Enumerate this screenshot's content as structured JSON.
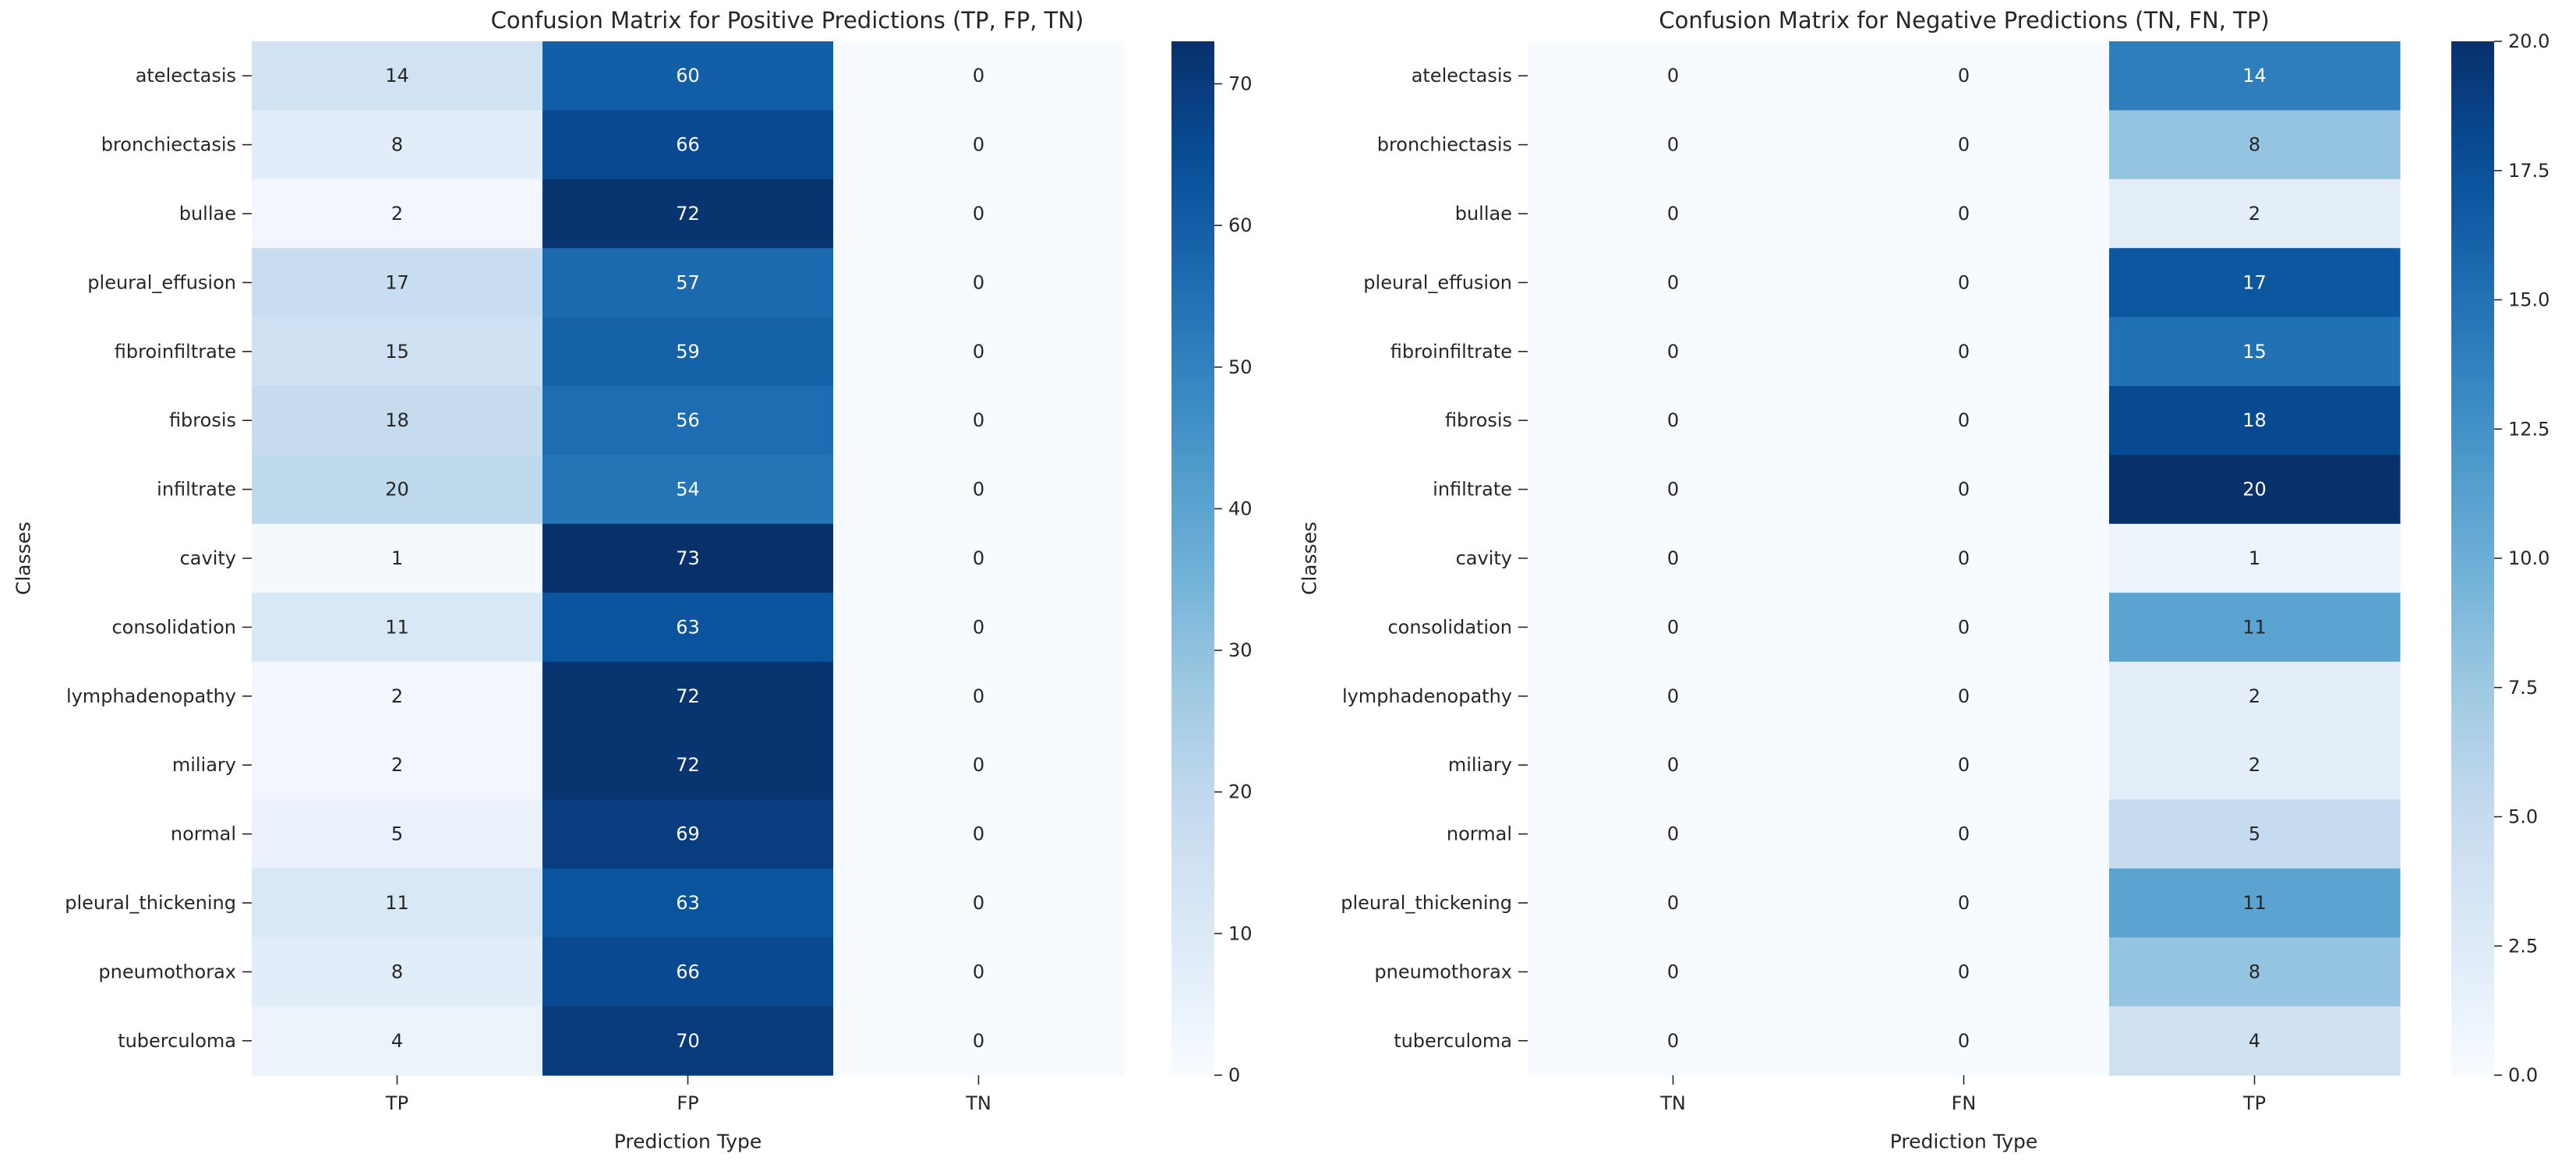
{
  "chart_data": [
    {
      "type": "heatmap",
      "title": "Confusion Matrix for Positive Predictions (TP, FP, TN)",
      "xlabel": "Prediction Type",
      "ylabel": "Classes",
      "x": [
        "TP",
        "FP",
        "TN"
      ],
      "y": [
        "atelectasis",
        "bronchiectasis",
        "bullae",
        "pleural_effusion",
        "fibroinfiltrate",
        "fibrosis",
        "infiltrate",
        "cavity",
        "consolidation",
        "lymphadenopathy",
        "miliary",
        "normal",
        "pleural_thickening",
        "pneumothorax",
        "tuberculoma"
      ],
      "values": [
        [
          14,
          60,
          0
        ],
        [
          8,
          66,
          0
        ],
        [
          2,
          72,
          0
        ],
        [
          17,
          57,
          0
        ],
        [
          15,
          59,
          0
        ],
        [
          18,
          56,
          0
        ],
        [
          20,
          54,
          0
        ],
        [
          1,
          73,
          0
        ],
        [
          11,
          63,
          0
        ],
        [
          2,
          72,
          0
        ],
        [
          2,
          72,
          0
        ],
        [
          5,
          69,
          0
        ],
        [
          11,
          63,
          0
        ],
        [
          8,
          66,
          0
        ],
        [
          4,
          70,
          0
        ]
      ],
      "colormap": "Blues",
      "vmin": 0,
      "vmax": 73,
      "colorbar_ticks": [
        0,
        10,
        20,
        30,
        40,
        50,
        60,
        70
      ],
      "colorbar_tick_labels": [
        "0",
        "10",
        "20",
        "30",
        "40",
        "50",
        "60",
        "70"
      ]
    },
    {
      "type": "heatmap",
      "title": "Confusion Matrix for Negative Predictions (TN, FN, TP)",
      "xlabel": "Prediction Type",
      "ylabel": "Classes",
      "x": [
        "TN",
        "FN",
        "TP"
      ],
      "y": [
        "atelectasis",
        "bronchiectasis",
        "bullae",
        "pleural_effusion",
        "fibroinfiltrate",
        "fibrosis",
        "infiltrate",
        "cavity",
        "consolidation",
        "lymphadenopathy",
        "miliary",
        "normal",
        "pleural_thickening",
        "pneumothorax",
        "tuberculoma"
      ],
      "values": [
        [
          0,
          0,
          14
        ],
        [
          0,
          0,
          8
        ],
        [
          0,
          0,
          2
        ],
        [
          0,
          0,
          17
        ],
        [
          0,
          0,
          15
        ],
        [
          0,
          0,
          18
        ],
        [
          0,
          0,
          20
        ],
        [
          0,
          0,
          1
        ],
        [
          0,
          0,
          11
        ],
        [
          0,
          0,
          2
        ],
        [
          0,
          0,
          2
        ],
        [
          0,
          0,
          5
        ],
        [
          0,
          0,
          11
        ],
        [
          0,
          0,
          8
        ],
        [
          0,
          0,
          4
        ]
      ],
      "colormap": "Blues",
      "vmin": 0,
      "vmax": 20,
      "colorbar_ticks": [
        0,
        2.5,
        5,
        7.5,
        10,
        12.5,
        15,
        17.5,
        20
      ],
      "colorbar_tick_labels": [
        "0.0",
        "2.5",
        "5.0",
        "7.5",
        "10.0",
        "12.5",
        "15.0",
        "17.5",
        "20.0"
      ]
    }
  ]
}
